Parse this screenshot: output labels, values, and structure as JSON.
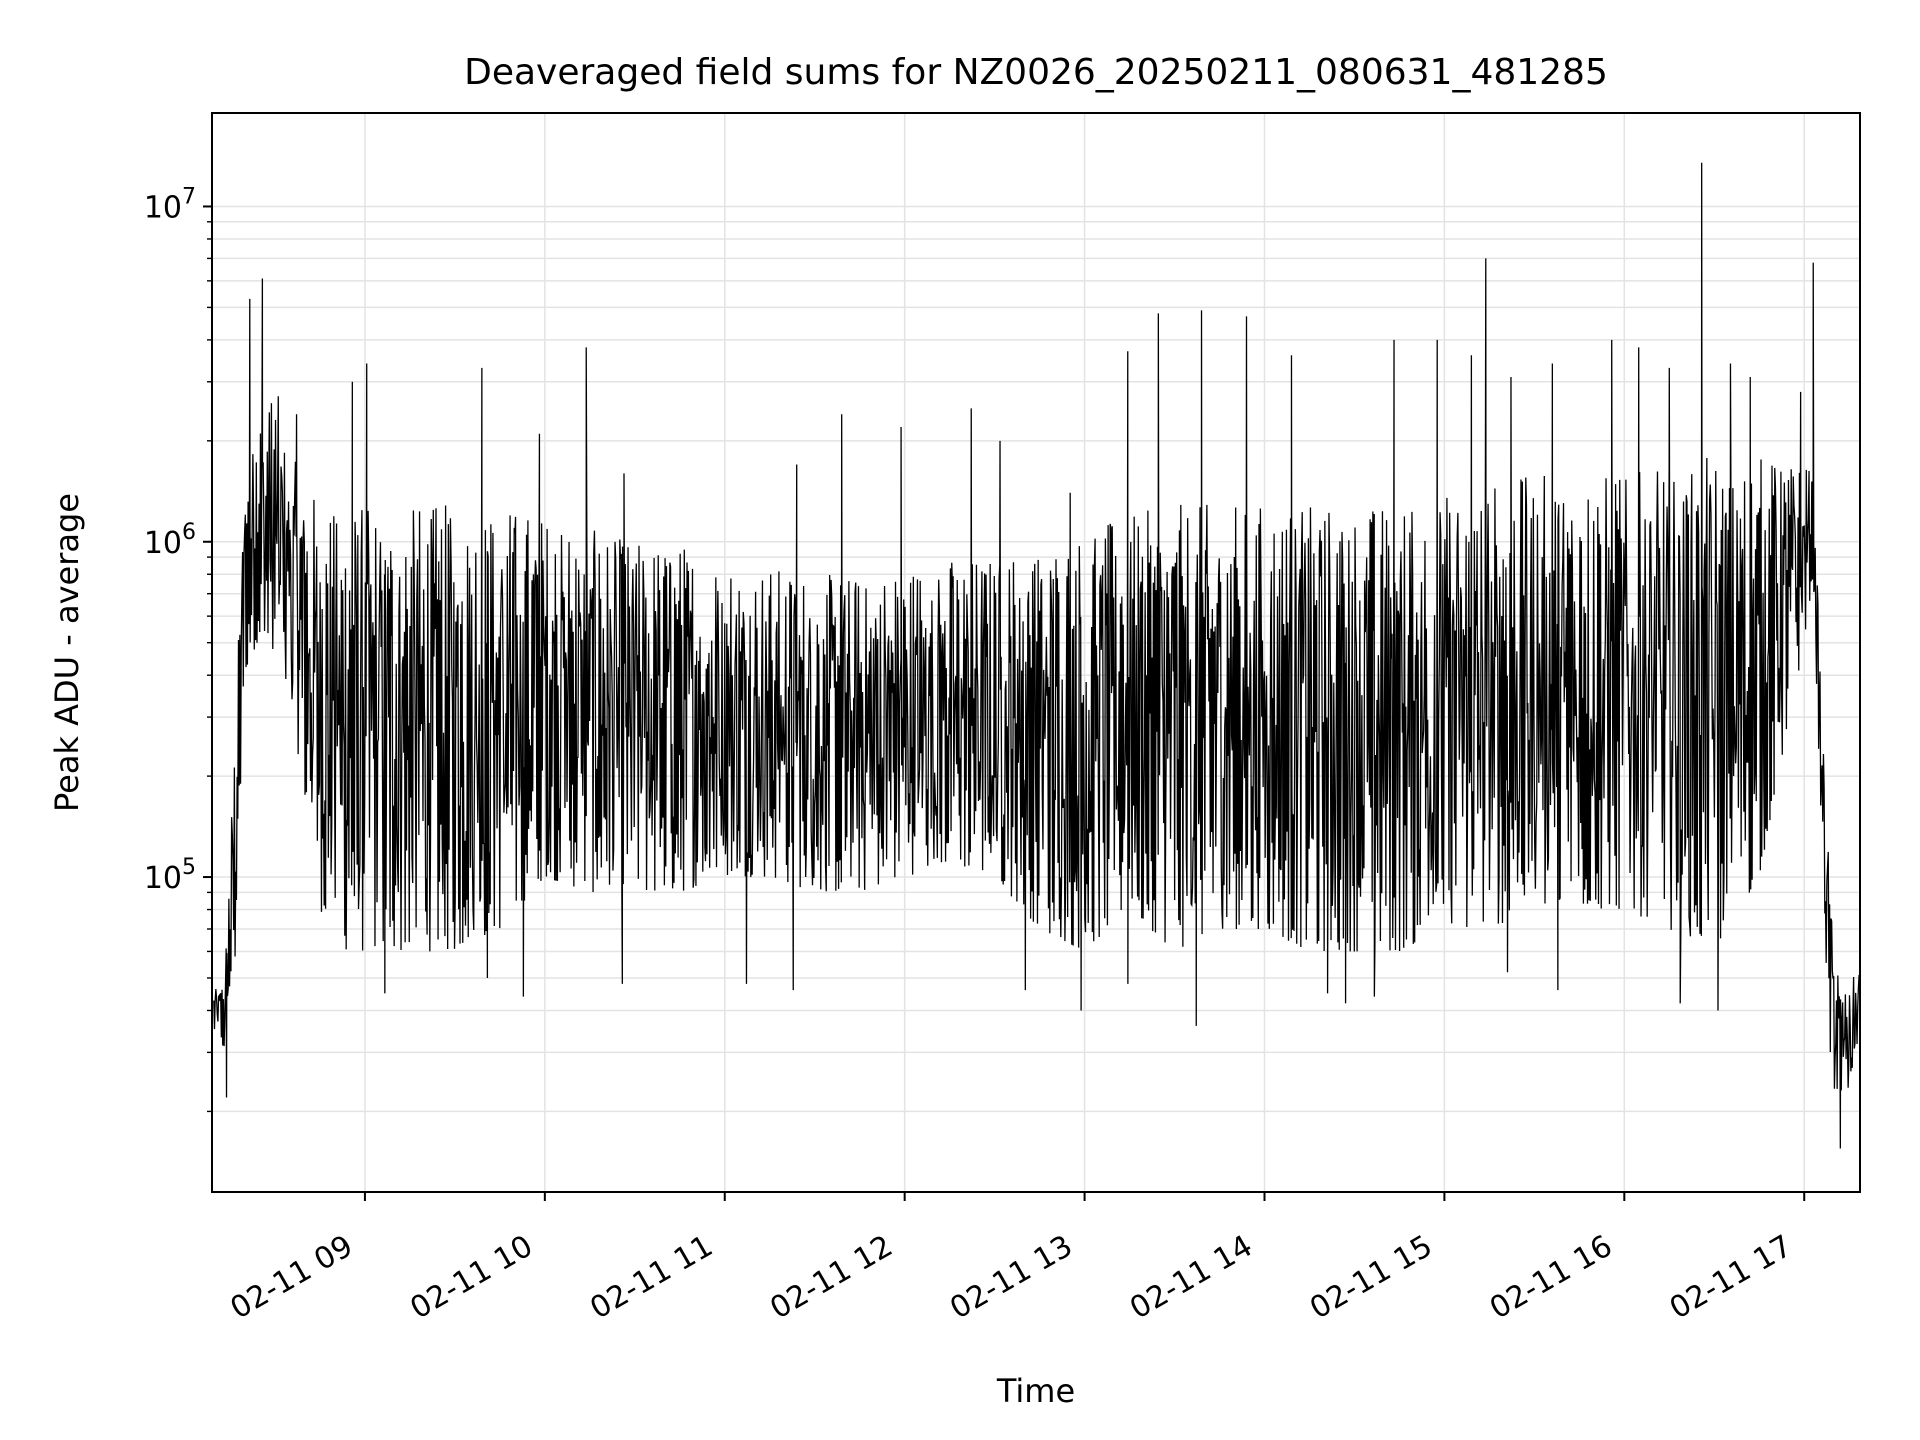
{
  "chart_data": {
    "type": "line",
    "title": "Deaveraged field sums for NZ0026_20250211_080631_481285",
    "xlabel": "Time",
    "ylabel": "Peak ADU - average",
    "x_unit": "hours since 2025-02-11 00:00",
    "xlim": [
      8.15,
      17.31
    ],
    "ylim": [
      11500,
      19000000
    ],
    "yscale": "log",
    "grid": true,
    "line_color": "#000000",
    "x_ticks": [
      {
        "value": 9,
        "label": "02-11 09"
      },
      {
        "value": 10,
        "label": "02-11 10"
      },
      {
        "value": 11,
        "label": "02-11 11"
      },
      {
        "value": 12,
        "label": "02-11 12"
      },
      {
        "value": 13,
        "label": "02-11 13"
      },
      {
        "value": 14,
        "label": "02-11 14"
      },
      {
        "value": 15,
        "label": "02-11 15"
      },
      {
        "value": 16,
        "label": "02-11 16"
      },
      {
        "value": 17,
        "label": "02-11 17"
      }
    ],
    "y_ticks": [
      {
        "value": 100000,
        "base": "10",
        "exp": "5"
      },
      {
        "value": 1000000,
        "base": "10",
        "exp": "6"
      },
      {
        "value": 10000000,
        "base": "10",
        "exp": "7"
      }
    ],
    "series": [
      {
        "name": "",
        "envelope": {
          "description_x": "hours",
          "x": [
            8.15,
            8.22,
            8.28,
            8.33,
            8.4,
            8.5,
            8.6,
            8.75,
            8.9,
            9.0,
            9.25,
            9.5,
            9.75,
            10.0,
            10.25,
            10.5,
            10.75,
            11.0,
            11.25,
            11.5,
            11.75,
            12.0,
            12.25,
            12.5,
            12.75,
            13.0,
            13.25,
            13.5,
            13.75,
            14.0,
            14.25,
            14.5,
            14.75,
            15.0,
            15.25,
            15.5,
            15.75,
            16.0,
            16.25,
            16.5,
            16.75,
            17.0,
            17.05,
            17.1,
            17.15,
            17.2,
            17.25,
            17.31
          ],
          "high": [
            45000,
            50000,
            300000,
            1500000,
            2500000,
            3000000,
            1800000,
            1300000,
            1300000,
            1300000,
            1300000,
            1300000,
            1300000,
            1200000,
            1100000,
            1000000,
            1000000,
            900000,
            850000,
            800000,
            800000,
            850000,
            900000,
            900000,
            1000000,
            1100000,
            1200000,
            1300000,
            1300000,
            1300000,
            1300000,
            1300000,
            1300000,
            1400000,
            1500000,
            1600000,
            1600000,
            1600000,
            1700000,
            1800000,
            1800000,
            1700000,
            1600000,
            300000,
            80000,
            50000,
            45000,
            60000
          ],
          "low": [
            35000,
            30000,
            55000,
            400000,
            500000,
            400000,
            300000,
            80000,
            60000,
            60000,
            60000,
            60000,
            70000,
            100000,
            90000,
            90000,
            90000,
            100000,
            100000,
            90000,
            90000,
            100000,
            110000,
            100000,
            70000,
            60000,
            80000,
            60000,
            70000,
            70000,
            60000,
            60000,
            60000,
            70000,
            70000,
            80000,
            80000,
            80000,
            70000,
            60000,
            100000,
            500000,
            800000,
            100000,
            25000,
            20000,
            22000,
            30000
          ]
        },
        "spikes": [
          [
            8.36,
            5300000
          ],
          [
            8.43,
            6100000
          ],
          [
            8.62,
            2400000
          ],
          [
            8.93,
            3000000
          ],
          [
            9.01,
            3400000
          ],
          [
            9.65,
            3300000
          ],
          [
            9.97,
            2100000
          ],
          [
            10.23,
            3800000
          ],
          [
            10.44,
            1600000
          ],
          [
            11.4,
            1700000
          ],
          [
            11.65,
            2400000
          ],
          [
            11.98,
            2200000
          ],
          [
            12.37,
            2500000
          ],
          [
            12.53,
            2000000
          ],
          [
            12.92,
            1400000
          ],
          [
            13.24,
            3700000
          ],
          [
            13.41,
            4800000
          ],
          [
            13.65,
            4900000
          ],
          [
            13.9,
            4700000
          ],
          [
            14.15,
            3600000
          ],
          [
            14.72,
            4000000
          ],
          [
            14.96,
            4000000
          ],
          [
            15.15,
            3600000
          ],
          [
            15.23,
            7000000
          ],
          [
            15.37,
            3100000
          ],
          [
            15.6,
            3400000
          ],
          [
            15.93,
            4000000
          ],
          [
            16.08,
            3800000
          ],
          [
            16.25,
            3300000
          ],
          [
            16.43,
            13500000
          ],
          [
            16.59,
            3400000
          ],
          [
            16.7,
            3100000
          ],
          [
            16.98,
            2800000
          ],
          [
            17.05,
            6800000
          ]
        ],
        "dips": [
          [
            8.23,
            22000
          ],
          [
            9.11,
            45000
          ],
          [
            9.68,
            50000
          ],
          [
            9.88,
            44000
          ],
          [
            10.43,
            48000
          ],
          [
            11.12,
            48000
          ],
          [
            11.38,
            46000
          ],
          [
            12.67,
            46000
          ],
          [
            12.98,
            40000
          ],
          [
            13.24,
            48000
          ],
          [
            13.62,
            36000
          ],
          [
            14.35,
            45000
          ],
          [
            14.45,
            42000
          ],
          [
            14.61,
            44000
          ],
          [
            15.35,
            52000
          ],
          [
            15.63,
            46000
          ],
          [
            16.31,
            42000
          ],
          [
            16.52,
            40000
          ],
          [
            17.2,
            15500
          ]
        ]
      }
    ]
  }
}
